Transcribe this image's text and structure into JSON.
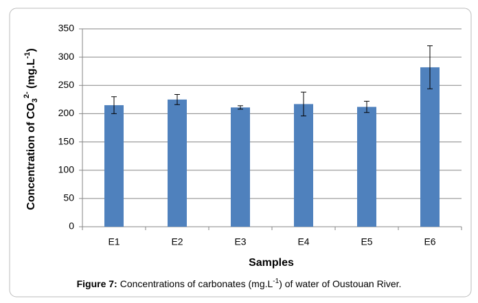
{
  "chart_data": {
    "type": "bar",
    "y_label": [
      "Concentration of CO",
      "3",
      "2-",
      " (mg.L",
      "-1",
      ")"
    ],
    "x_label": "Samples",
    "categories": [
      "E1",
      "E2",
      "E3",
      "E4",
      "E5",
      "E6"
    ],
    "values": [
      215,
      225,
      211,
      217,
      212,
      282
    ],
    "errors": [
      15,
      9,
      3,
      21,
      10,
      38
    ],
    "color": "#4f81bd",
    "ylim": [
      0,
      350
    ],
    "yticks": [
      0,
      50,
      100,
      150,
      200,
      250,
      300,
      350
    ],
    "grid": true
  },
  "caption": {
    "label": "Figure 7:",
    "text": "Concentrations of carbonates (mg.L",
    "sup": "-1",
    "text_after": ") of water of Oustouan River."
  }
}
